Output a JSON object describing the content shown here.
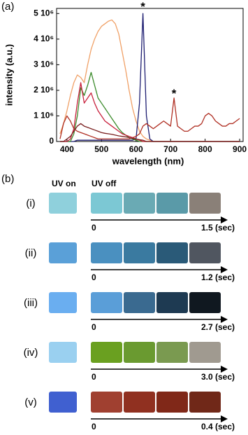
{
  "chart_data": {
    "type": "line",
    "panel_label": "(a)",
    "x": [
      380,
      390,
      400,
      410,
      420,
      430,
      440,
      450,
      460,
      470,
      480,
      490,
      500,
      510,
      520,
      530,
      540,
      550,
      560,
      570,
      580,
      590,
      600,
      610,
      620,
      630,
      640,
      650,
      660,
      670,
      680,
      690,
      700,
      710,
      720,
      730,
      740,
      750,
      760,
      770,
      780,
      790,
      800,
      810,
      820,
      830,
      840,
      850,
      860,
      870,
      880,
      890,
      900
    ],
    "xlim": [
      370,
      910
    ],
    "ylim": [
      0,
      5200000
    ],
    "xticks": [
      400,
      500,
      600,
      700,
      800,
      900
    ],
    "yticks": [
      0,
      {
        "value": 1000000,
        "label": "1 10⁶"
      },
      {
        "value": 2000000,
        "label": "2 10⁶"
      },
      {
        "value": 3000000,
        "label": "3 10⁶"
      },
      {
        "value": 4000000,
        "label": "4 10⁶"
      },
      {
        "value": 5000000,
        "label": "5 10⁶"
      }
    ],
    "xlabel": "wavelength (nm)",
    "ylabel": "intensity (a.u.)",
    "series": [
      {
        "color": "#f0a066",
        "values": [
          300000.0,
          700000.0,
          1200000.0,
          1800000.0,
          2300000.0,
          2600000.0,
          2500000.0,
          2300000.0,
          3000000.0,
          3600000.0,
          4000000.0,
          4300000.0,
          4500000.0,
          4600000.0,
          4700000.0,
          4750000.0,
          4600000.0,
          4200000.0,
          3500000.0,
          2800000.0,
          2000000.0,
          1300000.0,
          800000.0,
          400000.0,
          200000.0,
          100000.0,
          50000.0,
          0,
          0,
          0,
          0,
          0,
          0,
          0,
          0,
          0,
          0,
          0,
          0,
          0,
          0,
          0,
          0,
          0,
          0,
          0,
          0,
          0,
          0,
          0,
          0,
          0,
          0
        ]
      },
      {
        "color": "#1c1c70",
        "values": [
          0,
          0,
          0,
          0,
          0,
          50000.0,
          50000.0,
          50000.0,
          50000.0,
          50000.0,
          50000.0,
          50000.0,
          50000.0,
          50000.0,
          50000.0,
          50000.0,
          50000.0,
          50000.0,
          50000.0,
          50000.0,
          50000.0,
          50000.0,
          100000.0,
          1500000.0,
          5000000.0,
          1000000.0,
          100000.0,
          0,
          0,
          0,
          0,
          0,
          0,
          0,
          0,
          0,
          0,
          0,
          0,
          0,
          0,
          0,
          0,
          0,
          0,
          0,
          0,
          0,
          0,
          0,
          0,
          0,
          0
        ]
      },
      {
        "color": "#b03024",
        "values": [
          100000.0,
          700000.0,
          1000000.0,
          800000.0,
          500000.0,
          400000.0,
          350000.0,
          300000.0,
          250000.0,
          200000.0,
          150000.0,
          100000.0,
          100000.0,
          100000.0,
          100000.0,
          100000.0,
          100000.0,
          100000.0,
          100000.0,
          100000.0,
          100000.0,
          150000.0,
          200000.0,
          300000.0,
          600000.0,
          700000.0,
          600000.0,
          500000.0,
          600000.0,
          700000.0,
          800000.0,
          700000.0,
          600000.0,
          1700000.0,
          600000.0,
          500000.0,
          400000.0,
          400000.0,
          500000.0,
          600000.0,
          600000.0,
          700000.0,
          1000000.0,
          1100000.0,
          1000000.0,
          800000.0,
          700000.0,
          600000.0,
          600000.0,
          700000.0,
          700000.0,
          800000.0,
          900000.0
        ]
      },
      {
        "color": "#3a8a2a",
        "values": [
          0,
          0,
          0,
          0,
          300000.0,
          1000000.0,
          2100000.0,
          1800000.0,
          2200000.0,
          2700000.0,
          2200000.0,
          1700000.0,
          1500000.0,
          1300000.0,
          1100000.0,
          900000.0,
          700000.0,
          500000.0,
          350000.0,
          250000.0,
          150000.0,
          100000.0,
          50000.0,
          0,
          0,
          0,
          0,
          0,
          0,
          0,
          0,
          0,
          0,
          0,
          0,
          0,
          0,
          0,
          0,
          0,
          0,
          0,
          0,
          0,
          0,
          0,
          0,
          0,
          0,
          0,
          0,
          0,
          0
        ]
      },
      {
        "color": "#c8203c",
        "values": [
          0,
          0,
          0,
          100000.0,
          500000.0,
          1500000.0,
          2300000.0,
          1500000.0,
          1700000.0,
          1900000.0,
          1500000.0,
          1200000.0,
          1000000.0,
          800000.0,
          700000.0,
          600000.0,
          500000.0,
          400000.0,
          300000.0,
          250000.0,
          200000.0,
          150000.0,
          100000.0,
          50000.0,
          0,
          0,
          0,
          0,
          0,
          0,
          0,
          0,
          0,
          0,
          0,
          0,
          0,
          0,
          0,
          0,
          0,
          0,
          0,
          0,
          0,
          0,
          0,
          0,
          0,
          0,
          0,
          0,
          0
        ]
      },
      {
        "color": "#7a2020",
        "values": [
          0,
          0,
          100000.0,
          200000.0,
          400000.0,
          600000.0,
          700000.0,
          600000.0,
          550000.0,
          500000.0,
          450000.0,
          400000.0,
          350000.0,
          320000.0,
          300000.0,
          280000.0,
          250000.0,
          220000.0,
          200000.0,
          180000.0,
          150000.0,
          120000.0,
          100000.0,
          70000.0,
          50000.0,
          0,
          0,
          0,
          0,
          0,
          0,
          0,
          0,
          0,
          0,
          0,
          0,
          0,
          0,
          0,
          0,
          0,
          0,
          0,
          0,
          0,
          0,
          0,
          0,
          0,
          0,
          0,
          0
        ]
      }
    ],
    "annotations": [
      {
        "text": "*",
        "x": 620,
        "y": 5350000
      },
      {
        "text": "*",
        "x": 710,
        "y": 1950000
      }
    ]
  },
  "panel_b": {
    "panel_label": "(b)",
    "uv_on": "UV on",
    "uv_off": "UV off",
    "rows": [
      {
        "label": "(i)",
        "start": "0",
        "end": "1.5 (sec)"
      },
      {
        "label": "(ii)",
        "start": "0",
        "end": "1.2 (sec)"
      },
      {
        "label": "(iii)",
        "start": "0",
        "end": "2.7 (sec)"
      },
      {
        "label": "(iv)",
        "start": "0",
        "end": "3.0 (sec)"
      },
      {
        "label": "(v)",
        "start": "0",
        "end": "0.4 (sec)"
      }
    ]
  }
}
